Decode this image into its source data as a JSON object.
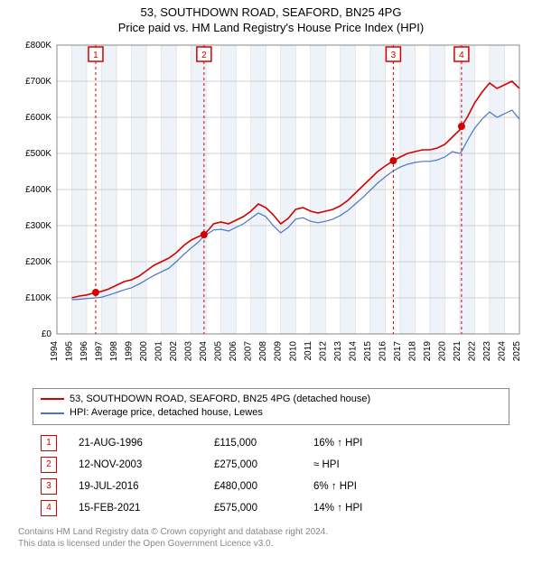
{
  "title_line1": "53, SOUTHDOWN ROAD, SEAFORD, BN25 4PG",
  "title_line2": "Price paid vs. HM Land Registry's House Price Index (HPI)",
  "chart": {
    "type": "line",
    "background_color": "#ffffff",
    "grid_color": "#d0d0d0",
    "band_color": "#eef3f9",
    "axis_fontsize": 10,
    "x": {
      "min": 1994,
      "max": 2025,
      "ticks": [
        1994,
        1995,
        1996,
        1997,
        1998,
        1999,
        2000,
        2001,
        2002,
        2003,
        2004,
        2005,
        2006,
        2007,
        2008,
        2009,
        2010,
        2011,
        2012,
        2013,
        2014,
        2015,
        2016,
        2017,
        2018,
        2019,
        2020,
        2021,
        2022,
        2023,
        2024,
        2025
      ]
    },
    "y": {
      "min": 0,
      "max": 800000,
      "tick_step": 100000,
      "tick_labels": [
        "£0",
        "£100K",
        "£200K",
        "£300K",
        "£400K",
        "£500K",
        "£600K",
        "£700K",
        "£800K"
      ]
    },
    "series": [
      {
        "name": "property",
        "label": "53, SOUTHDOWN ROAD, SEAFORD, BN25 4PG (detached house)",
        "color": "#d40000",
        "width": 1.6,
        "points": [
          [
            1995.0,
            100000
          ],
          [
            1995.5,
            105000
          ],
          [
            1996.0,
            108000
          ],
          [
            1996.6,
            115000
          ],
          [
            1997.0,
            118000
          ],
          [
            1997.5,
            125000
          ],
          [
            1998.0,
            135000
          ],
          [
            1998.5,
            145000
          ],
          [
            1999.0,
            150000
          ],
          [
            1999.5,
            160000
          ],
          [
            2000.0,
            175000
          ],
          [
            2000.5,
            190000
          ],
          [
            2001.0,
            200000
          ],
          [
            2001.5,
            210000
          ],
          [
            2002.0,
            225000
          ],
          [
            2002.5,
            245000
          ],
          [
            2003.0,
            260000
          ],
          [
            2003.5,
            270000
          ],
          [
            2003.86,
            275000
          ],
          [
            2004.2,
            290000
          ],
          [
            2004.5,
            305000
          ],
          [
            2005.0,
            310000
          ],
          [
            2005.5,
            305000
          ],
          [
            2006.0,
            315000
          ],
          [
            2006.5,
            325000
          ],
          [
            2007.0,
            340000
          ],
          [
            2007.5,
            360000
          ],
          [
            2008.0,
            350000
          ],
          [
            2008.5,
            330000
          ],
          [
            2009.0,
            305000
          ],
          [
            2009.5,
            320000
          ],
          [
            2010.0,
            345000
          ],
          [
            2010.5,
            350000
          ],
          [
            2011.0,
            340000
          ],
          [
            2011.5,
            335000
          ],
          [
            2012.0,
            340000
          ],
          [
            2012.5,
            345000
          ],
          [
            2013.0,
            355000
          ],
          [
            2013.5,
            370000
          ],
          [
            2014.0,
            390000
          ],
          [
            2014.5,
            410000
          ],
          [
            2015.0,
            430000
          ],
          [
            2015.5,
            450000
          ],
          [
            2016.0,
            465000
          ],
          [
            2016.55,
            480000
          ],
          [
            2017.0,
            490000
          ],
          [
            2017.5,
            500000
          ],
          [
            2018.0,
            505000
          ],
          [
            2018.5,
            510000
          ],
          [
            2019.0,
            510000
          ],
          [
            2019.5,
            515000
          ],
          [
            2020.0,
            525000
          ],
          [
            2020.5,
            545000
          ],
          [
            2021.0,
            565000
          ],
          [
            2021.12,
            575000
          ],
          [
            2021.5,
            600000
          ],
          [
            2022.0,
            640000
          ],
          [
            2022.5,
            670000
          ],
          [
            2023.0,
            695000
          ],
          [
            2023.5,
            680000
          ],
          [
            2024.0,
            690000
          ],
          [
            2024.5,
            700000
          ],
          [
            2025.0,
            680000
          ]
        ]
      },
      {
        "name": "hpi",
        "label": "HPI: Average price, detached house, Lewes",
        "color": "#4a74c9",
        "width": 1.2,
        "points": [
          [
            1995.0,
            95000
          ],
          [
            1995.5,
            96000
          ],
          [
            1996.0,
            98000
          ],
          [
            1996.6,
            100000
          ],
          [
            1997.0,
            102000
          ],
          [
            1997.5,
            108000
          ],
          [
            1998.0,
            115000
          ],
          [
            1998.5,
            122000
          ],
          [
            1999.0,
            128000
          ],
          [
            1999.5,
            138000
          ],
          [
            2000.0,
            150000
          ],
          [
            2000.5,
            162000
          ],
          [
            2001.0,
            172000
          ],
          [
            2001.5,
            182000
          ],
          [
            2002.0,
            200000
          ],
          [
            2002.5,
            220000
          ],
          [
            2003.0,
            238000
          ],
          [
            2003.5,
            255000
          ],
          [
            2003.86,
            272000
          ],
          [
            2004.2,
            280000
          ],
          [
            2004.5,
            288000
          ],
          [
            2005.0,
            290000
          ],
          [
            2005.5,
            285000
          ],
          [
            2006.0,
            295000
          ],
          [
            2006.5,
            305000
          ],
          [
            2007.0,
            320000
          ],
          [
            2007.5,
            335000
          ],
          [
            2008.0,
            325000
          ],
          [
            2008.5,
            300000
          ],
          [
            2009.0,
            280000
          ],
          [
            2009.5,
            295000
          ],
          [
            2010.0,
            318000
          ],
          [
            2010.5,
            322000
          ],
          [
            2011.0,
            312000
          ],
          [
            2011.5,
            308000
          ],
          [
            2012.0,
            312000
          ],
          [
            2012.5,
            318000
          ],
          [
            2013.0,
            328000
          ],
          [
            2013.5,
            342000
          ],
          [
            2014.0,
            360000
          ],
          [
            2014.5,
            378000
          ],
          [
            2015.0,
            398000
          ],
          [
            2015.5,
            418000
          ],
          [
            2016.0,
            435000
          ],
          [
            2016.55,
            452000
          ],
          [
            2017.0,
            462000
          ],
          [
            2017.5,
            470000
          ],
          [
            2018.0,
            475000
          ],
          [
            2018.5,
            478000
          ],
          [
            2019.0,
            478000
          ],
          [
            2019.5,
            482000
          ],
          [
            2020.0,
            490000
          ],
          [
            2020.5,
            505000
          ],
          [
            2021.0,
            500000
          ],
          [
            2021.12,
            505000
          ],
          [
            2021.5,
            535000
          ],
          [
            2022.0,
            570000
          ],
          [
            2022.5,
            595000
          ],
          [
            2023.0,
            615000
          ],
          [
            2023.5,
            600000
          ],
          [
            2024.0,
            610000
          ],
          [
            2024.5,
            620000
          ],
          [
            2025.0,
            595000
          ]
        ]
      }
    ],
    "sales_markers": [
      {
        "num": "1",
        "year": 1996.6,
        "price": 115000
      },
      {
        "num": "2",
        "year": 2003.86,
        "price": 275000
      },
      {
        "num": "3",
        "year": 2016.55,
        "price": 480000
      },
      {
        "num": "4",
        "year": 2021.12,
        "price": 575000
      }
    ],
    "marker_color": "#d40000",
    "marker_box_border": "#d40000",
    "marker_vline_color": "#d40000",
    "marker_vline_dash": "3,3"
  },
  "legend": {
    "items": [
      {
        "color": "#d40000",
        "label": "53, SOUTHDOWN ROAD, SEAFORD, BN25 4PG (detached house)"
      },
      {
        "color": "#4a74c9",
        "label": "HPI: Average price, detached house, Lewes"
      }
    ]
  },
  "sales_table": {
    "box_color": "#d40000",
    "rows": [
      {
        "num": "1",
        "date": "21-AUG-1996",
        "price": "£115,000",
        "hpi": "16% ↑ HPI"
      },
      {
        "num": "2",
        "date": "12-NOV-2003",
        "price": "£275,000",
        "hpi": "≈ HPI"
      },
      {
        "num": "3",
        "date": "19-JUL-2016",
        "price": "£480,000",
        "hpi": "6% ↑ HPI"
      },
      {
        "num": "4",
        "date": "15-FEB-2021",
        "price": "£575,000",
        "hpi": "14% ↑ HPI"
      }
    ]
  },
  "footer": {
    "line1": "Contains HM Land Registry data © Crown copyright and database right 2024.",
    "line2": "This data is licensed under the Open Government Licence v3.0."
  }
}
